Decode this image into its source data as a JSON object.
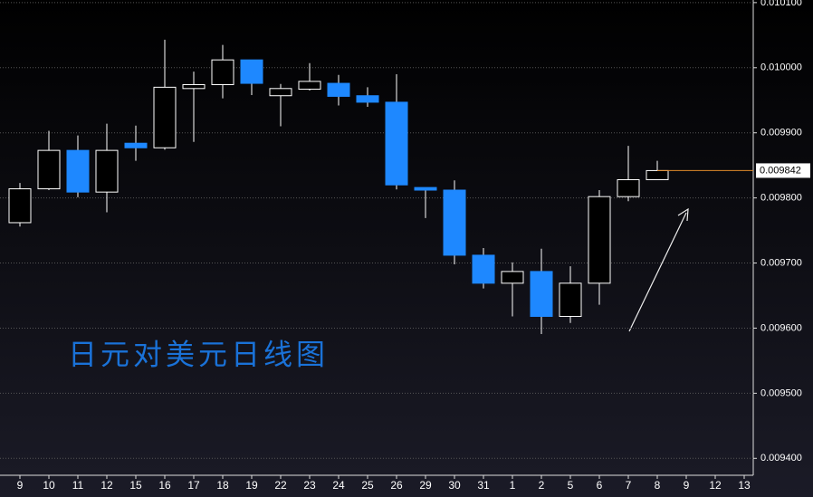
{
  "chart_data": {
    "type": "candlestick",
    "annotation": "日元对美元日线图",
    "categories": [
      "9",
      "10",
      "11",
      "12",
      "15",
      "16",
      "17",
      "18",
      "19",
      "22",
      "23",
      "24",
      "25",
      "26",
      "29",
      "30",
      "31",
      "1",
      "2",
      "5",
      "6",
      "7",
      "8",
      "9",
      "12",
      "13"
    ],
    "open": [
      0.009762,
      0.009814,
      0.009873,
      0.009809,
      0.009884,
      0.009877,
      0.009968,
      0.009974,
      0.010012,
      0.009957,
      0.009967,
      0.009976,
      0.009957,
      0.009947,
      0.009816,
      0.009812,
      0.009712,
      0.009669,
      0.009687,
      0.009618,
      0.009669,
      0.009802,
      0.009828,
      null,
      null,
      null
    ],
    "high": [
      0.009823,
      0.009903,
      0.009896,
      0.009914,
      0.009911,
      0.010043,
      0.009994,
      0.010035,
      0.010012,
      0.009975,
      0.010007,
      0.009989,
      0.00997,
      0.00999,
      0.009816,
      0.009827,
      0.009723,
      0.009701,
      0.009722,
      0.009695,
      0.009812,
      0.00988,
      0.009857,
      null,
      null,
      null
    ],
    "low": [
      0.009756,
      0.009812,
      0.009801,
      0.009778,
      0.009857,
      0.009874,
      0.009886,
      0.009953,
      0.009958,
      0.00991,
      0.009965,
      0.009942,
      0.00994,
      0.009813,
      0.009769,
      0.009698,
      0.009661,
      0.009618,
      0.009591,
      0.009608,
      0.009636,
      0.009795,
      0.009828,
      null,
      null,
      null
    ],
    "close": [
      0.009814,
      0.009873,
      0.009809,
      0.009873,
      0.009877,
      0.00997,
      0.009974,
      0.010012,
      0.009976,
      0.009968,
      0.009979,
      0.009956,
      0.009947,
      0.00982,
      0.009812,
      0.009712,
      0.009669,
      0.009687,
      0.009618,
      0.009669,
      0.009802,
      0.009828,
      0.009842,
      null,
      null,
      null
    ],
    "up_color": "#000000",
    "down_color": "#1e88ff",
    "price_line_color": "#e08a2a",
    "last_price": {
      "value": 0.009842,
      "label": "0.009842"
    },
    "ylim": [
      0.009374,
      0.010104
    ],
    "yticks": [
      {
        "value": 0.0101,
        "label": "0.010100"
      },
      {
        "value": 0.01,
        "label": "0.010000"
      },
      {
        "value": 0.0099,
        "label": "0.009900"
      },
      {
        "value": 0.0098,
        "label": "0.009800"
      },
      {
        "value": 0.0097,
        "label": "0.009700"
      },
      {
        "value": 0.0096,
        "label": "0.009600"
      },
      {
        "value": 0.0095,
        "label": "0.009500"
      },
      {
        "value": 0.0094,
        "label": "0.009400"
      }
    ],
    "grid": true
  }
}
